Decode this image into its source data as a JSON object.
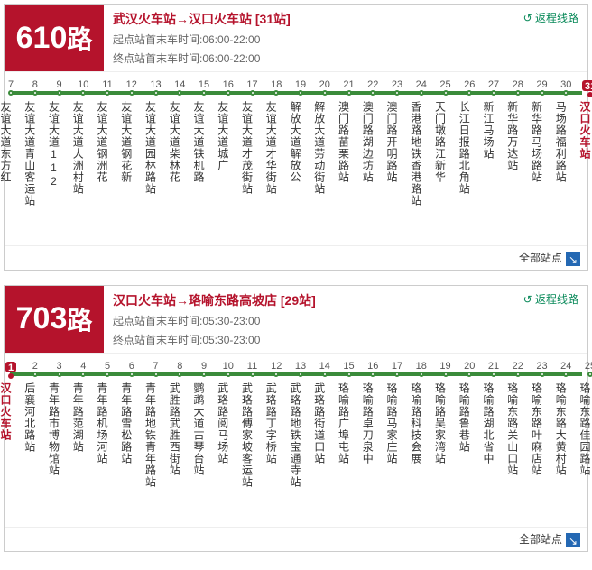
{
  "colors": {
    "badge_bg": "#b5132c",
    "title_color": "#b5132c",
    "track": "#3a8b3a",
    "link": "#0a8a5a"
  },
  "footer_label": "全部站点",
  "routes": [
    {
      "number": "610",
      "suffix": "路",
      "title": "武汉火车站→汉口火车站 [31站]",
      "time_lines": [
        "起点站首末车时间:06:00-22:00",
        "终点站首末车时间:06:00-22:00"
      ],
      "return_link": "返程线路",
      "count": 25,
      "start_index": 7,
      "highlight_index": 31,
      "stops": [
        "友谊大道东方红",
        "友谊大道青山客运站",
        "友谊大道112",
        "友谊大道大洲村站",
        "友谊大道钢洲花",
        "友谊大道钢花新",
        "友谊大道园林路站",
        "友谊大道柴林花",
        "友谊大道铁机路",
        "友谊大道城广",
        "友谊大道才茂街站",
        "友谊大道才华街站",
        "解放大道解放公",
        "解放大道劳动街站",
        "澳门路苗栗路站",
        "澳门路湖边坊站",
        "澳门路开明路站",
        "香港路地铁香港路站",
        "天门墩路江新华",
        "长江日报路北角站",
        "新江马场站",
        "新华路万达站",
        "新华路马场路站",
        "马场路福利路站",
        "汉口火车站"
      ]
    },
    {
      "number": "703",
      "suffix": "路",
      "title": "汉口火车站→珞喻东路高坡店 [29站]",
      "time_lines": [
        "起点站首末车时间:05:30-23:00",
        "终点站首末车时间:05:30-23:00"
      ],
      "return_link": "返程线路",
      "count": 25,
      "start_index": 1,
      "highlight_index": 1,
      "stops": [
        "汉口火车站",
        "后襄河北路站",
        "青年路市博物馆站",
        "青年路范湖站",
        "青年路机场河站",
        "青年路雪松路站",
        "青年路地铁青年路站",
        "武胜路武胜西街站",
        "鹦鹉大道古琴台站",
        "武珞路阅马场站",
        "武珞路傅家坡客运站",
        "武珞路丁字桥站",
        "武珞路地铁宝通寺站",
        "武珞路街道口站",
        "珞喻路广埠屯站",
        "珞喻路卓刀泉中",
        "珞喻路马家庄站",
        "珞喻路科技会展",
        "珞喻路吴家湾站",
        "珞喻路鲁巷站",
        "珞喻路湖北省中",
        "珞喻东路关山口站",
        "珞喻东路叶麻店站",
        "珞喻东路大黄村站",
        "珞喻东路佳园路站"
      ]
    }
  ]
}
